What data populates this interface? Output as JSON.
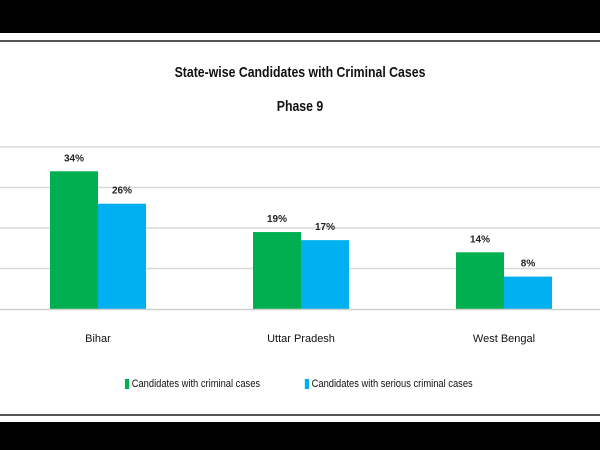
{
  "chart_data": {
    "type": "bar",
    "title": "State-wise Candidates with Criminal Cases",
    "subtitle": "Phase 9",
    "categories": [
      "Bihar",
      "Uttar Pradesh",
      "West Bengal"
    ],
    "series": [
      {
        "name": "Candidates with criminal cases",
        "values": [
          34,
          19,
          14
        ],
        "labels": [
          "34%",
          "19%",
          "14%"
        ],
        "color": "#00b050"
      },
      {
        "name": "Candidates with serious criminal cases",
        "values": [
          26,
          17,
          8
        ],
        "labels": [
          "26%",
          "17%",
          "8%"
        ],
        "color": "#00b0f0"
      }
    ],
    "ylim": [
      0,
      40
    ],
    "grid": true,
    "legend": "bottom"
  }
}
